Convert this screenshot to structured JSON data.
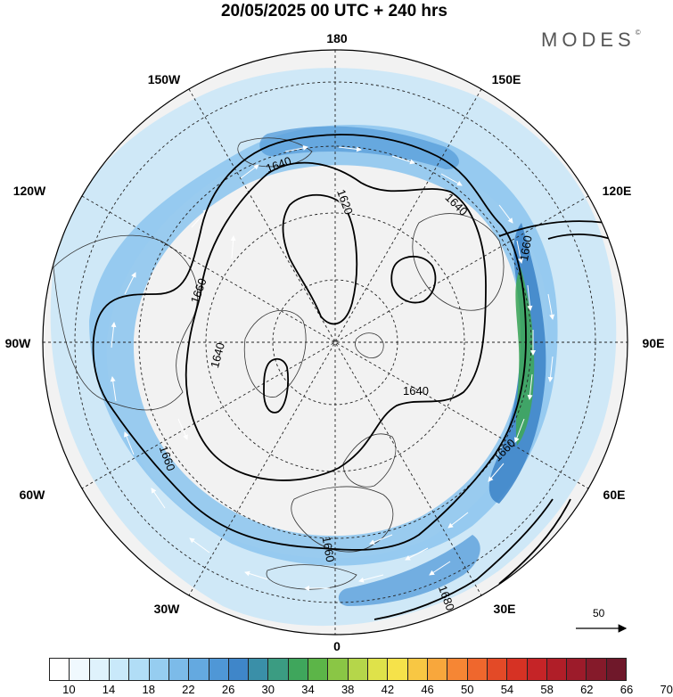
{
  "title": "20/05/2025  00 UTC  + 240 hrs",
  "brand": "MODES",
  "brand_mark": "©",
  "longitude_labels": {
    "top": "180",
    "bottom": "0",
    "left": "90W",
    "right": "90E",
    "upper_left": "150W",
    "upper_right": "150E",
    "mid_upper_left": "120W",
    "mid_upper_right": "120E",
    "mid_lower_left": "60W",
    "mid_lower_right": "60E",
    "lower_left": "30W",
    "lower_right": "30E"
  },
  "contour_labels": {
    "c1620": "1620",
    "c1640a": "1640",
    "c1640b": "1640",
    "c1640c": "1640",
    "c1640d": "1640",
    "c1660a": "1660",
    "c1660b": "1660",
    "c1660c": "1660",
    "c1660d": "1660",
    "c1680": "1680"
  },
  "wind_scale": {
    "label": "50",
    "arrow": "reference vector"
  },
  "colorbar": {
    "labels": [
      "10",
      "14",
      "18",
      "22",
      "26",
      "30",
      "34",
      "38",
      "42",
      "46",
      "50",
      "54",
      "58",
      "62",
      "66",
      "70"
    ],
    "colors": [
      "#ffffff",
      "#f0f9fe",
      "#dff2fc",
      "#c9e9fa",
      "#b1ddf6",
      "#96cdf0",
      "#7cbbe9",
      "#64a9e0",
      "#4f97d6",
      "#3f86c9",
      "#3a8fa8",
      "#3b9c82",
      "#3fa65c",
      "#5cb548",
      "#8ac645",
      "#b5d64a",
      "#dfe24a",
      "#f6e24a",
      "#f8c743",
      "#f8a73c",
      "#f68634",
      "#ef672d",
      "#e34a27",
      "#d63224",
      "#c52427",
      "#b01e28",
      "#9c1b2a",
      "#851a2a",
      "#6f182a"
    ]
  }
}
